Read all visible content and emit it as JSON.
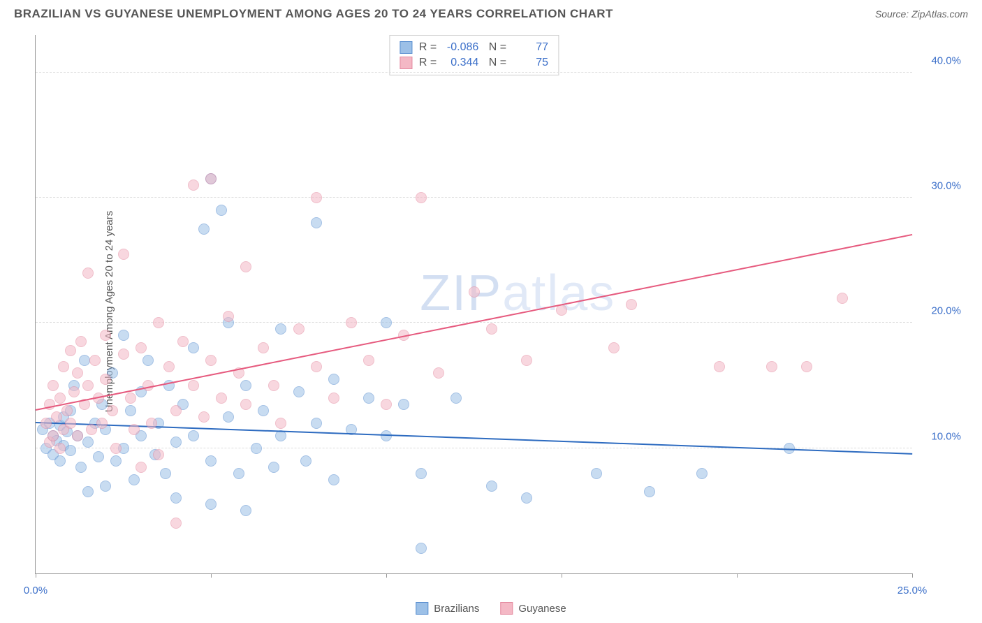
{
  "header": {
    "title": "BRAZILIAN VS GUYANESE UNEMPLOYMENT AMONG AGES 20 TO 24 YEARS CORRELATION CHART",
    "source_prefix": "Source: ",
    "source_name": "ZipAtlas.com"
  },
  "watermark": "ZIPatlas",
  "chart": {
    "type": "scatter",
    "ylabel": "Unemployment Among Ages 20 to 24 years",
    "xlim": [
      0,
      25
    ],
    "ylim": [
      0,
      43
    ],
    "x_ticks": [
      0,
      5,
      10,
      15,
      20,
      25
    ],
    "x_tick_labels": {
      "0": "0.0%",
      "25": "25.0%"
    },
    "y_ticks": [
      10,
      20,
      30,
      40
    ],
    "y_tick_labels": {
      "10": "10.0%",
      "20": "20.0%",
      "30": "30.0%",
      "40": "40.0%"
    },
    "grid_color": "#dddddd",
    "background_color": "#ffffff",
    "marker_radius": 8,
    "marker_opacity": 0.55,
    "series": [
      {
        "name": "Brazilians",
        "fill_color": "#9cc0e7",
        "stroke_color": "#5a8fd0",
        "reg_line_color": "#2d6bc0",
        "R": "-0.086",
        "N": "77",
        "reg_start": [
          0,
          12.0
        ],
        "reg_end": [
          25,
          9.5
        ],
        "points": [
          [
            0.2,
            11.5
          ],
          [
            0.3,
            10.0
          ],
          [
            0.4,
            12.0
          ],
          [
            0.5,
            11.0
          ],
          [
            0.5,
            9.5
          ],
          [
            0.6,
            10.6
          ],
          [
            0.7,
            11.8
          ],
          [
            0.7,
            9.0
          ],
          [
            0.8,
            12.5
          ],
          [
            0.8,
            10.2
          ],
          [
            0.9,
            11.3
          ],
          [
            1.0,
            13.0
          ],
          [
            1.0,
            9.8
          ],
          [
            1.1,
            15.0
          ],
          [
            1.2,
            11.0
          ],
          [
            1.3,
            8.5
          ],
          [
            1.4,
            17.0
          ],
          [
            1.5,
            10.5
          ],
          [
            1.5,
            6.5
          ],
          [
            1.7,
            12.0
          ],
          [
            1.8,
            9.3
          ],
          [
            1.9,
            13.5
          ],
          [
            2.0,
            11.5
          ],
          [
            2.0,
            7.0
          ],
          [
            2.2,
            16.0
          ],
          [
            2.3,
            9.0
          ],
          [
            2.5,
            19.0
          ],
          [
            2.5,
            10.0
          ],
          [
            2.7,
            13.0
          ],
          [
            2.8,
            7.5
          ],
          [
            3.0,
            11.0
          ],
          [
            3.0,
            14.5
          ],
          [
            3.2,
            17.0
          ],
          [
            3.4,
            9.5
          ],
          [
            3.5,
            12.0
          ],
          [
            3.7,
            8.0
          ],
          [
            3.8,
            15.0
          ],
          [
            4.0,
            10.5
          ],
          [
            4.0,
            6.0
          ],
          [
            4.2,
            13.5
          ],
          [
            4.5,
            18.0
          ],
          [
            4.5,
            11.0
          ],
          [
            4.8,
            27.5
          ],
          [
            5.0,
            31.5
          ],
          [
            5.0,
            9.0
          ],
          [
            5.0,
            5.5
          ],
          [
            5.3,
            29.0
          ],
          [
            5.5,
            20.0
          ],
          [
            5.5,
            12.5
          ],
          [
            5.8,
            8.0
          ],
          [
            6.0,
            15.0
          ],
          [
            6.0,
            5.0
          ],
          [
            6.3,
            10.0
          ],
          [
            6.5,
            13.0
          ],
          [
            6.8,
            8.5
          ],
          [
            7.0,
            19.5
          ],
          [
            7.0,
            11.0
          ],
          [
            7.5,
            14.5
          ],
          [
            7.7,
            9.0
          ],
          [
            8.0,
            28.0
          ],
          [
            8.0,
            12.0
          ],
          [
            8.5,
            15.5
          ],
          [
            8.5,
            7.5
          ],
          [
            9.0,
            11.5
          ],
          [
            9.5,
            14.0
          ],
          [
            10.0,
            20.0
          ],
          [
            10.0,
            11.0
          ],
          [
            10.5,
            13.5
          ],
          [
            11.0,
            2.0
          ],
          [
            11.0,
            8.0
          ],
          [
            12.0,
            14.0
          ],
          [
            13.0,
            7.0
          ],
          [
            14.0,
            6.0
          ],
          [
            16.0,
            8.0
          ],
          [
            17.5,
            6.5
          ],
          [
            19.0,
            8.0
          ],
          [
            21.5,
            10.0
          ]
        ]
      },
      {
        "name": "Guyanese",
        "fill_color": "#f4b8c5",
        "stroke_color": "#e48aa0",
        "reg_line_color": "#e65a7e",
        "R": "0.344",
        "N": "75",
        "reg_start": [
          0,
          13.0
        ],
        "reg_end": [
          25,
          27.0
        ],
        "points": [
          [
            0.3,
            12.0
          ],
          [
            0.4,
            10.5
          ],
          [
            0.4,
            13.5
          ],
          [
            0.5,
            11.0
          ],
          [
            0.5,
            15.0
          ],
          [
            0.6,
            12.5
          ],
          [
            0.7,
            10.0
          ],
          [
            0.7,
            14.0
          ],
          [
            0.8,
            11.5
          ],
          [
            0.8,
            16.5
          ],
          [
            0.9,
            13.0
          ],
          [
            1.0,
            17.8
          ],
          [
            1.0,
            12.0
          ],
          [
            1.1,
            14.5
          ],
          [
            1.2,
            11.0
          ],
          [
            1.2,
            16.0
          ],
          [
            1.3,
            18.5
          ],
          [
            1.4,
            13.5
          ],
          [
            1.5,
            24.0
          ],
          [
            1.5,
            15.0
          ],
          [
            1.6,
            11.5
          ],
          [
            1.7,
            17.0
          ],
          [
            1.8,
            14.0
          ],
          [
            1.9,
            12.0
          ],
          [
            2.0,
            19.0
          ],
          [
            2.0,
            15.5
          ],
          [
            2.2,
            13.0
          ],
          [
            2.3,
            10.0
          ],
          [
            2.5,
            17.5
          ],
          [
            2.5,
            25.5
          ],
          [
            2.7,
            14.0
          ],
          [
            2.8,
            11.5
          ],
          [
            3.0,
            18.0
          ],
          [
            3.0,
            8.5
          ],
          [
            3.2,
            15.0
          ],
          [
            3.3,
            12.0
          ],
          [
            3.5,
            20.0
          ],
          [
            3.5,
            9.5
          ],
          [
            3.8,
            16.5
          ],
          [
            4.0,
            13.0
          ],
          [
            4.0,
            4.0
          ],
          [
            4.2,
            18.5
          ],
          [
            4.5,
            15.0
          ],
          [
            4.5,
            31.0
          ],
          [
            4.8,
            12.5
          ],
          [
            5.0,
            31.5
          ],
          [
            5.0,
            17.0
          ],
          [
            5.3,
            14.0
          ],
          [
            5.5,
            20.5
          ],
          [
            5.8,
            16.0
          ],
          [
            6.0,
            13.5
          ],
          [
            6.0,
            24.5
          ],
          [
            6.5,
            18.0
          ],
          [
            6.8,
            15.0
          ],
          [
            7.0,
            12.0
          ],
          [
            7.5,
            19.5
          ],
          [
            8.0,
            16.5
          ],
          [
            8.0,
            30.0
          ],
          [
            8.5,
            14.0
          ],
          [
            9.0,
            20.0
          ],
          [
            9.5,
            17.0
          ],
          [
            10.0,
            13.5
          ],
          [
            10.5,
            19.0
          ],
          [
            11.0,
            30.0
          ],
          [
            11.5,
            16.0
          ],
          [
            12.5,
            22.5
          ],
          [
            13.0,
            19.5
          ],
          [
            14.0,
            17.0
          ],
          [
            15.0,
            21.0
          ],
          [
            16.5,
            18.0
          ],
          [
            17.0,
            21.5
          ],
          [
            19.5,
            16.5
          ],
          [
            21.0,
            16.5
          ],
          [
            22.0,
            16.5
          ],
          [
            23.0,
            22.0
          ]
        ]
      }
    ],
    "legend": {
      "items": [
        "Brazilians",
        "Guyanese"
      ]
    }
  }
}
